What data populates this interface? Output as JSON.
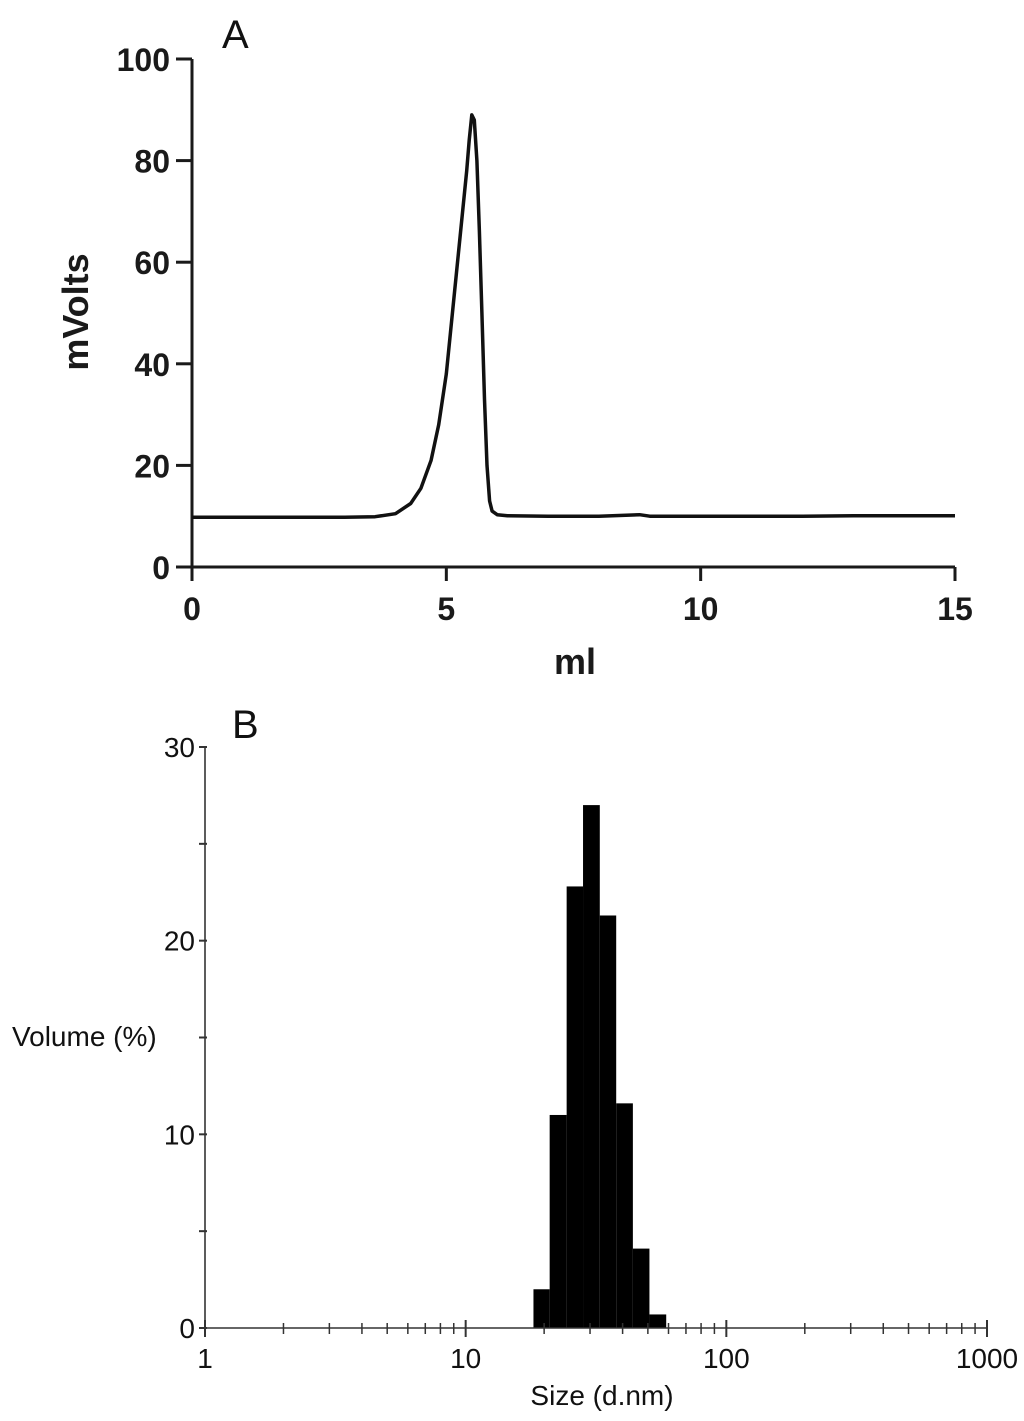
{
  "chart_data": [
    {
      "type": "line",
      "panel_label": "A",
      "xlabel": "ml",
      "ylabel": "mVolts",
      "xlim": [
        0,
        15
      ],
      "ylim": [
        0,
        100
      ],
      "xticks": [
        "0",
        "5",
        "10",
        "15"
      ],
      "yticks": [
        "0",
        "20",
        "40",
        "60",
        "80",
        "100"
      ],
      "grid": false,
      "line_color": "#111111",
      "series": [
        {
          "x": [
            0,
            1,
            2,
            3,
            3.6,
            4.0,
            4.3,
            4.5,
            4.7,
            4.85,
            5.0,
            5.1,
            5.2,
            5.3,
            5.4,
            5.45,
            5.5,
            5.55,
            5.6,
            5.65,
            5.7,
            5.75,
            5.8,
            5.85,
            5.9,
            6.0,
            6.2,
            7,
            8,
            8.8,
            9,
            10,
            11,
            12,
            13,
            14,
            15
          ],
          "y": [
            9.8,
            9.8,
            9.8,
            9.8,
            9.9,
            10.5,
            12.5,
            15.5,
            21,
            28,
            38,
            48,
            58,
            68,
            78,
            84,
            89,
            88,
            80,
            66,
            50,
            33,
            20,
            13,
            11,
            10.3,
            10.1,
            10,
            10,
            10.3,
            10,
            10,
            10,
            10,
            10.1,
            10.1,
            10.1
          ]
        }
      ]
    },
    {
      "type": "bar",
      "panel_label": "B",
      "xlabel": "Size (d.nm)",
      "ylabel": "Volume (%)",
      "xscale": "log",
      "xlim": [
        1,
        1000
      ],
      "ylim": [
        0,
        30
      ],
      "xticks": [
        "1",
        "10",
        "100",
        "1000"
      ],
      "yticks": [
        "0",
        "10",
        "20",
        "30"
      ],
      "grid": false,
      "bar_color": "#000000",
      "bins": [
        {
          "from": 18.2,
          "to": 21.0,
          "value": 2.0
        },
        {
          "from": 21.0,
          "to": 24.4,
          "value": 11.0
        },
        {
          "from": 24.4,
          "to": 28.2,
          "value": 22.8
        },
        {
          "from": 28.2,
          "to": 32.7,
          "value": 27.0
        },
        {
          "from": 32.7,
          "to": 37.8,
          "value": 21.3
        },
        {
          "from": 37.8,
          "to": 43.8,
          "value": 11.6
        },
        {
          "from": 43.8,
          "to": 50.7,
          "value": 4.1
        },
        {
          "from": 50.7,
          "to": 58.8,
          "value": 0.7
        }
      ]
    }
  ]
}
